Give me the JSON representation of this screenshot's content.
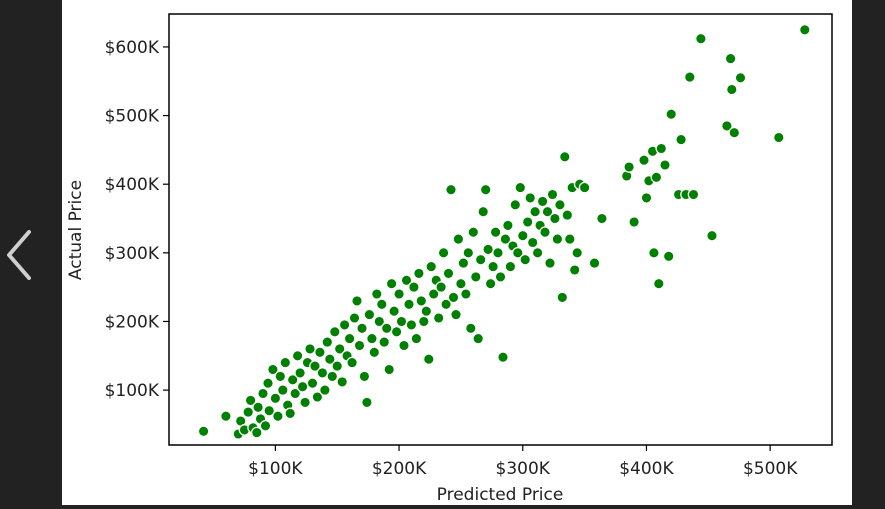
{
  "nav": {
    "prev_icon": "chevron-left-icon"
  },
  "colors": {
    "point": "#008000",
    "point_edge": "#ffffff",
    "axes": "#000000",
    "background": "#ffffff",
    "frame": "#222222"
  },
  "chart_data": {
    "type": "scatter",
    "title": "",
    "xlabel": "Predicted Price",
    "ylabel": "Actual Price",
    "xlim": [
      14000,
      550000
    ],
    "ylim": [
      20000,
      648000
    ],
    "xticks": [
      100000,
      200000,
      300000,
      400000,
      500000
    ],
    "xtick_labels": [
      "$100K",
      "$200K",
      "$300K",
      "$400K",
      "$500K"
    ],
    "yticks": [
      100000,
      200000,
      300000,
      400000,
      500000,
      600000
    ],
    "ytick_labels": [
      "$100K",
      "$200K",
      "$300K",
      "$400K",
      "$500K",
      "$600K"
    ],
    "grid": false,
    "legend": false,
    "series": [
      {
        "points": [
          [
            42000,
            40000
          ],
          [
            60000,
            62000
          ],
          [
            70000,
            36000
          ],
          [
            72000,
            55000
          ],
          [
            75000,
            42000
          ],
          [
            78000,
            68000
          ],
          [
            80000,
            85000
          ],
          [
            82000,
            45000
          ],
          [
            85000,
            38000
          ],
          [
            86000,
            75000
          ],
          [
            88000,
            58000
          ],
          [
            90000,
            95000
          ],
          [
            92000,
            48000
          ],
          [
            94000,
            110000
          ],
          [
            95000,
            70000
          ],
          [
            98000,
            130000
          ],
          [
            100000,
            88000
          ],
          [
            102000,
            62000
          ],
          [
            104000,
            120000
          ],
          [
            106000,
            100000
          ],
          [
            108000,
            140000
          ],
          [
            110000,
            78000
          ],
          [
            112000,
            66000
          ],
          [
            114000,
            115000
          ],
          [
            116000,
            95000
          ],
          [
            118000,
            150000
          ],
          [
            120000,
            125000
          ],
          [
            122000,
            105000
          ],
          [
            124000,
            82000
          ],
          [
            126000,
            140000
          ],
          [
            128000,
            160000
          ],
          [
            130000,
            110000
          ],
          [
            132000,
            135000
          ],
          [
            134000,
            90000
          ],
          [
            136000,
            155000
          ],
          [
            138000,
            125000
          ],
          [
            140000,
            100000
          ],
          [
            142000,
            170000
          ],
          [
            144000,
            145000
          ],
          [
            146000,
            120000
          ],
          [
            148000,
            185000
          ],
          [
            150000,
            135000
          ],
          [
            152000,
            160000
          ],
          [
            154000,
            112000
          ],
          [
            156000,
            195000
          ],
          [
            158000,
            150000
          ],
          [
            160000,
            175000
          ],
          [
            162000,
            140000
          ],
          [
            164000,
            205000
          ],
          [
            166000,
            230000
          ],
          [
            168000,
            165000
          ],
          [
            170000,
            190000
          ],
          [
            172000,
            120000
          ],
          [
            174000,
            82000
          ],
          [
            176000,
            210000
          ],
          [
            178000,
            175000
          ],
          [
            180000,
            155000
          ],
          [
            182000,
            240000
          ],
          [
            184000,
            200000
          ],
          [
            186000,
            225000
          ],
          [
            188000,
            170000
          ],
          [
            190000,
            190000
          ],
          [
            192000,
            130000
          ],
          [
            194000,
            255000
          ],
          [
            196000,
            215000
          ],
          [
            198000,
            185000
          ],
          [
            200000,
            240000
          ],
          [
            202000,
            200000
          ],
          [
            204000,
            165000
          ],
          [
            206000,
            260000
          ],
          [
            208000,
            225000
          ],
          [
            210000,
            195000
          ],
          [
            212000,
            250000
          ],
          [
            214000,
            175000
          ],
          [
            216000,
            270000
          ],
          [
            218000,
            230000
          ],
          [
            220000,
            200000
          ],
          [
            222000,
            215000
          ],
          [
            224000,
            145000
          ],
          [
            226000,
            280000
          ],
          [
            228000,
            240000
          ],
          [
            230000,
            260000
          ],
          [
            232000,
            205000
          ],
          [
            234000,
            250000
          ],
          [
            236000,
            300000
          ],
          [
            238000,
            225000
          ],
          [
            240000,
            270000
          ],
          [
            242000,
            392000
          ],
          [
            244000,
            235000
          ],
          [
            246000,
            210000
          ],
          [
            248000,
            320000
          ],
          [
            250000,
            255000
          ],
          [
            252000,
            285000
          ],
          [
            254000,
            240000
          ],
          [
            256000,
            300000
          ],
          [
            258000,
            190000
          ],
          [
            260000,
            330000
          ],
          [
            262000,
            265000
          ],
          [
            264000,
            175000
          ],
          [
            266000,
            290000
          ],
          [
            268000,
            360000
          ],
          [
            270000,
            392000
          ],
          [
            272000,
            305000
          ],
          [
            274000,
            255000
          ],
          [
            276000,
            280000
          ],
          [
            278000,
            330000
          ],
          [
            280000,
            300000
          ],
          [
            282000,
            265000
          ],
          [
            284000,
            148000
          ],
          [
            286000,
            320000
          ],
          [
            288000,
            340000
          ],
          [
            290000,
            280000
          ],
          [
            292000,
            310000
          ],
          [
            294000,
            370000
          ],
          [
            296000,
            300000
          ],
          [
            298000,
            395000
          ],
          [
            300000,
            325000
          ],
          [
            302000,
            290000
          ],
          [
            304000,
            345000
          ],
          [
            306000,
            380000
          ],
          [
            308000,
            315000
          ],
          [
            310000,
            360000
          ],
          [
            312000,
            300000
          ],
          [
            314000,
            340000
          ],
          [
            316000,
            375000
          ],
          [
            318000,
            330000
          ],
          [
            320000,
            360000
          ],
          [
            322000,
            285000
          ],
          [
            324000,
            385000
          ],
          [
            326000,
            350000
          ],
          [
            328000,
            320000
          ],
          [
            330000,
            370000
          ],
          [
            332000,
            235000
          ],
          [
            334000,
            440000
          ],
          [
            336000,
            355000
          ],
          [
            338000,
            320000
          ],
          [
            340000,
            395000
          ],
          [
            342000,
            275000
          ],
          [
            344000,
            300000
          ],
          [
            346000,
            400000
          ],
          [
            350000,
            395000
          ],
          [
            358000,
            285000
          ],
          [
            364000,
            350000
          ],
          [
            384000,
            412000
          ],
          [
            386000,
            425000
          ],
          [
            390000,
            345000
          ],
          [
            398000,
            435000
          ],
          [
            400000,
            380000
          ],
          [
            402000,
            405000
          ],
          [
            405000,
            448000
          ],
          [
            406000,
            300000
          ],
          [
            408000,
            410000
          ],
          [
            410000,
            255000
          ],
          [
            412000,
            452000
          ],
          [
            415000,
            428000
          ],
          [
            418000,
            295000
          ],
          [
            420000,
            502000
          ],
          [
            426000,
            385000
          ],
          [
            428000,
            465000
          ],
          [
            432000,
            385000
          ],
          [
            435000,
            556000
          ],
          [
            438000,
            385000
          ],
          [
            444000,
            612000
          ],
          [
            453000,
            325000
          ],
          [
            465000,
            485000
          ],
          [
            468000,
            583000
          ],
          [
            469000,
            538000
          ],
          [
            471000,
            475000
          ],
          [
            476000,
            555000
          ],
          [
            507000,
            468000
          ],
          [
            528000,
            625000
          ]
        ]
      }
    ]
  }
}
